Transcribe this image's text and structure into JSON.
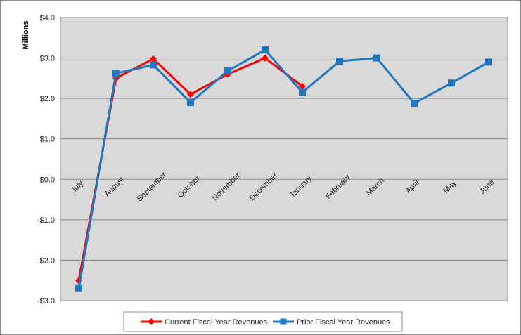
{
  "chart_data": {
    "type": "line",
    "ylabel": "Millions",
    "categories": [
      "July",
      "August",
      "September",
      "October",
      "November",
      "December",
      "January",
      "February",
      "March",
      "April",
      "May",
      "June"
    ],
    "ylim": [
      -3.0,
      4.0
    ],
    "yticks": [
      -3.0,
      -2.0,
      -1.0,
      0.0,
      1.0,
      2.0,
      3.0,
      4.0
    ],
    "ytick_labels": [
      "-$3.0",
      "-$2.0",
      "-$1.0",
      "$0.0",
      "$1.0",
      "$2.0",
      "$3.0",
      "$4.0"
    ],
    "grid": true,
    "legend_position": "bottom",
    "series": [
      {
        "name": "Current Fiscal Year Revenues",
        "color": "#ff0000",
        "marker": "diamond",
        "values": [
          -2.5,
          2.5,
          2.98,
          2.1,
          2.6,
          3.0,
          2.3,
          null,
          null,
          null,
          null,
          null
        ]
      },
      {
        "name": "Prior Fiscal Year Revenues",
        "color": "#1f77c4",
        "marker": "square",
        "values": [
          -2.7,
          2.62,
          2.83,
          1.9,
          2.68,
          3.2,
          2.15,
          2.92,
          3.0,
          1.88,
          2.38,
          2.9
        ]
      }
    ],
    "colors": {
      "plot_background": "#d9d9d9",
      "chart_background": "#ffffff",
      "gridline": "#8c8c8c"
    }
  }
}
